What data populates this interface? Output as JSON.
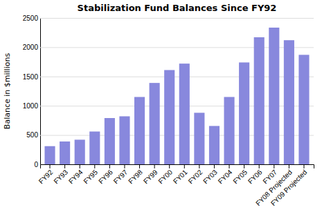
{
  "chart_data": {
    "type": "bar",
    "title": "Stabilization Fund Balances Since FY92",
    "ylabel": "Balance in $millions",
    "categories": [
      "FY92",
      "FY93",
      "FY94",
      "FY95",
      "FY96",
      "FY97",
      "FY98",
      "FY99",
      "FY00",
      "FY01",
      "FY02",
      "FY03",
      "FY04",
      "FY05",
      "FY06",
      "FY07",
      "FY08 Projected",
      "FY09 Projected"
    ],
    "values": [
      310,
      390,
      420,
      560,
      790,
      820,
      1150,
      1390,
      1610,
      1720,
      880,
      655,
      1150,
      1740,
      2170,
      2335,
      2120,
      1870
    ],
    "color": "#8888dd",
    "ylim": [
      0,
      2500
    ],
    "yticks": [
      0,
      500,
      1000,
      1500,
      2000,
      2500
    ],
    "grid": true
  }
}
